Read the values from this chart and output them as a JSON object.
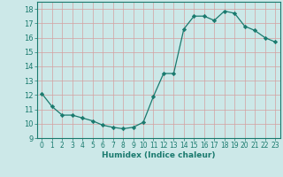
{
  "x": [
    0,
    1,
    2,
    3,
    4,
    5,
    6,
    7,
    8,
    9,
    10,
    11,
    12,
    13,
    14,
    15,
    16,
    17,
    18,
    19,
    20,
    21,
    22,
    23
  ],
  "y": [
    12.1,
    11.2,
    10.6,
    10.6,
    10.4,
    10.2,
    9.9,
    9.75,
    9.65,
    9.75,
    10.1,
    11.9,
    13.5,
    13.5,
    16.6,
    17.5,
    17.5,
    17.2,
    17.85,
    17.7,
    16.8,
    16.5,
    16.0,
    15.7
  ],
  "xlabel": "Humidex (Indice chaleur)",
  "ylim": [
    9,
    18.5
  ],
  "xlim": [
    -0.5,
    23.5
  ],
  "yticks": [
    9,
    10,
    11,
    12,
    13,
    14,
    15,
    16,
    17,
    18
  ],
  "xticks": [
    0,
    1,
    2,
    3,
    4,
    5,
    6,
    7,
    8,
    9,
    10,
    11,
    12,
    13,
    14,
    15,
    16,
    17,
    18,
    19,
    20,
    21,
    22,
    23
  ],
  "line_color": "#1a7a6e",
  "marker_color": "#1a7a6e",
  "bg_color": "#cce8e8",
  "grid_color": "#d4a0a0",
  "label_color": "#1a7a6e",
  "tick_color": "#1a7a6e",
  "tick_fontsize": 5.5,
  "xlabel_fontsize": 6.5
}
